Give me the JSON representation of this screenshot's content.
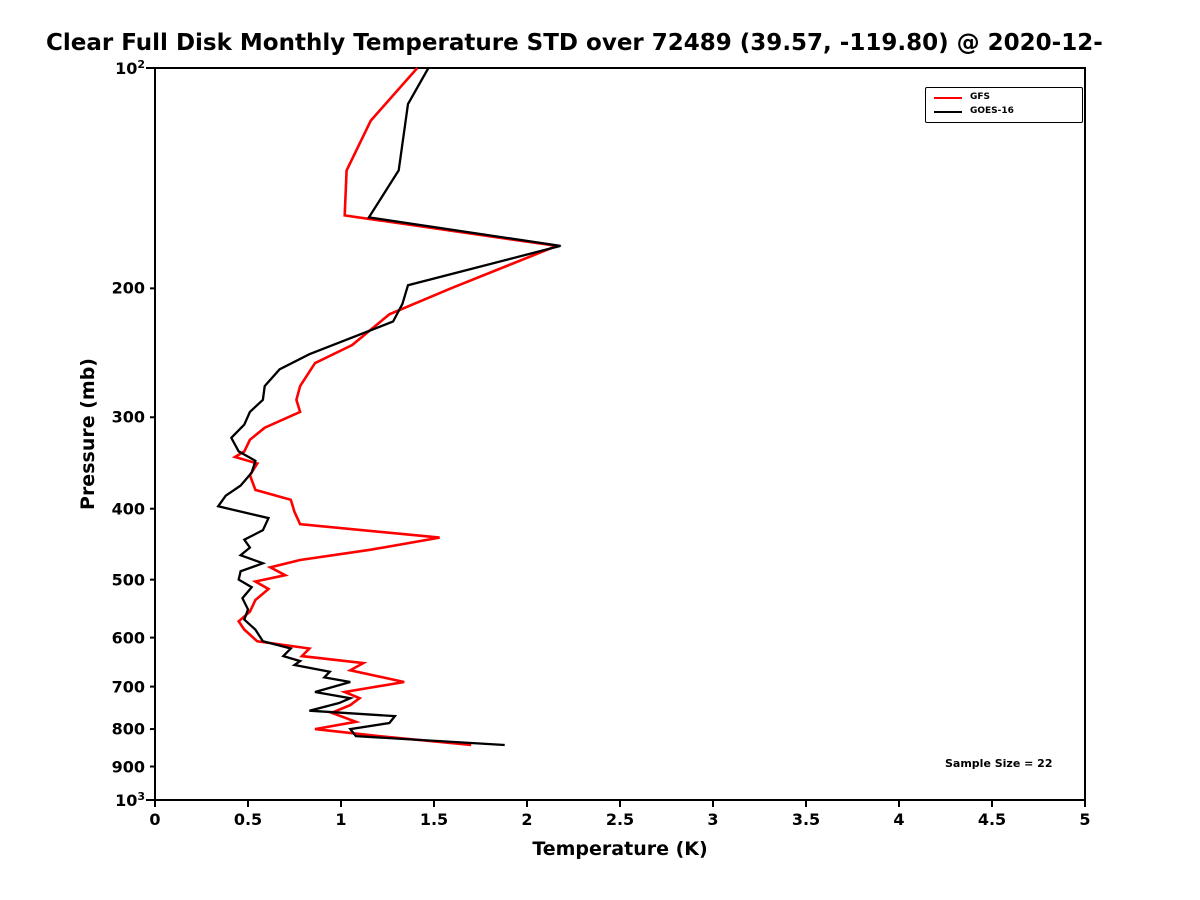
{
  "chart_data": {
    "type": "line",
    "title": "Clear Full Disk Monthly Temperature STD over 72489 (39.57, -119.80) @ 2020-12-",
    "xlabel": "Temperature (K)",
    "ylabel": "Pressure (mb)",
    "xlim": [
      0,
      5
    ],
    "ylim": [
      100,
      1000
    ],
    "y_scale": "log",
    "grid": false,
    "annotation": "Sample Size = 22",
    "x_ticks": [
      0,
      0.5,
      1,
      1.5,
      2,
      2.5,
      3,
      3.5,
      4,
      4.5,
      5
    ],
    "x_tick_labels": [
      "0",
      "0.5",
      "1",
      "1.5",
      "2",
      "2.5",
      "3",
      "3.5",
      "4",
      "4.5",
      "5"
    ],
    "y_ticks": [
      {
        "v": 100,
        "base": "10",
        "exp": "2",
        "major": true
      },
      {
        "v": 200,
        "label": "200"
      },
      {
        "v": 300,
        "label": "300"
      },
      {
        "v": 400,
        "label": "400"
      },
      {
        "v": 500,
        "label": "500"
      },
      {
        "v": 600,
        "label": "600"
      },
      {
        "v": 700,
        "label": "700"
      },
      {
        "v": 800,
        "label": "800"
      },
      {
        "v": 900,
        "label": "900"
      },
      {
        "v": 1000,
        "base": "10",
        "exp": "3",
        "major": true
      }
    ],
    "legend": {
      "position": "top-right",
      "entries": [
        {
          "label": "GFS",
          "color": "#ff0000"
        },
        {
          "label": "GOES-16",
          "color": "#000000"
        }
      ]
    },
    "series": [
      {
        "name": "GFS",
        "color": "#ff0000",
        "width": 2.6,
        "points": [
          [
            100,
            1.41
          ],
          [
            118,
            1.16
          ],
          [
            138,
            1.03
          ],
          [
            159,
            1.02
          ],
          [
            175,
            2.16
          ],
          [
            200,
            1.59
          ],
          [
            217,
            1.26
          ],
          [
            239,
            1.06
          ],
          [
            253,
            0.86
          ],
          [
            272,
            0.78
          ],
          [
            284,
            0.76
          ],
          [
            295,
            0.78
          ],
          [
            310,
            0.59
          ],
          [
            322,
            0.51
          ],
          [
            334,
            0.48
          ],
          [
            340,
            0.43
          ],
          [
            347,
            0.55
          ],
          [
            360,
            0.51
          ],
          [
            377,
            0.54
          ],
          [
            389,
            0.73
          ],
          [
            404,
            0.75
          ],
          [
            420,
            0.78
          ],
          [
            438,
            1.53
          ],
          [
            455,
            1.16
          ],
          [
            470,
            0.78
          ],
          [
            481,
            0.62
          ],
          [
            493,
            0.7
          ],
          [
            503,
            0.54
          ],
          [
            515,
            0.61
          ],
          [
            533,
            0.54
          ],
          [
            553,
            0.51
          ],
          [
            570,
            0.45
          ],
          [
            585,
            0.48
          ],
          [
            607,
            0.55
          ],
          [
            621,
            0.83
          ],
          [
            636,
            0.79
          ],
          [
            650,
            1.12
          ],
          [
            665,
            1.05
          ],
          [
            690,
            1.34
          ],
          [
            712,
            1.02
          ],
          [
            726,
            1.1
          ],
          [
            742,
            1.05
          ],
          [
            760,
            0.95
          ],
          [
            782,
            1.08
          ],
          [
            800,
            0.86
          ],
          [
            818,
            1.2
          ],
          [
            841,
            1.7
          ]
        ]
      },
      {
        "name": "GOES-16",
        "color": "#000000",
        "width": 2.3,
        "points": [
          [
            100,
            1.47
          ],
          [
            112,
            1.36
          ],
          [
            138,
            1.31
          ],
          [
            160,
            1.15
          ],
          [
            175,
            2.18
          ],
          [
            198,
            1.36
          ],
          [
            210,
            1.33
          ],
          [
            222,
            1.28
          ],
          [
            246,
            0.83
          ],
          [
            258,
            0.67
          ],
          [
            272,
            0.59
          ],
          [
            284,
            0.58
          ],
          [
            295,
            0.51
          ],
          [
            307,
            0.48
          ],
          [
            320,
            0.41
          ],
          [
            334,
            0.45
          ],
          [
            344,
            0.54
          ],
          [
            357,
            0.52
          ],
          [
            372,
            0.46
          ],
          [
            384,
            0.38
          ],
          [
            397,
            0.34
          ],
          [
            412,
            0.61
          ],
          [
            428,
            0.58
          ],
          [
            441,
            0.48
          ],
          [
            452,
            0.51
          ],
          [
            463,
            0.46
          ],
          [
            475,
            0.58
          ],
          [
            487,
            0.46
          ],
          [
            500,
            0.45
          ],
          [
            512,
            0.52
          ],
          [
            530,
            0.47
          ],
          [
            549,
            0.5
          ],
          [
            567,
            0.48
          ],
          [
            585,
            0.54
          ],
          [
            607,
            0.58
          ],
          [
            621,
            0.73
          ],
          [
            636,
            0.69
          ],
          [
            646,
            0.78
          ],
          [
            654,
            0.75
          ],
          [
            668,
            0.94
          ],
          [
            680,
            0.91
          ],
          [
            690,
            1.05
          ],
          [
            712,
            0.86
          ],
          [
            726,
            1.05
          ],
          [
            737,
            0.99
          ],
          [
            755,
            0.83
          ],
          [
            768,
            1.29
          ],
          [
            785,
            1.26
          ],
          [
            800,
            1.05
          ],
          [
            818,
            1.08
          ],
          [
            841,
            1.88
          ]
        ]
      }
    ]
  }
}
